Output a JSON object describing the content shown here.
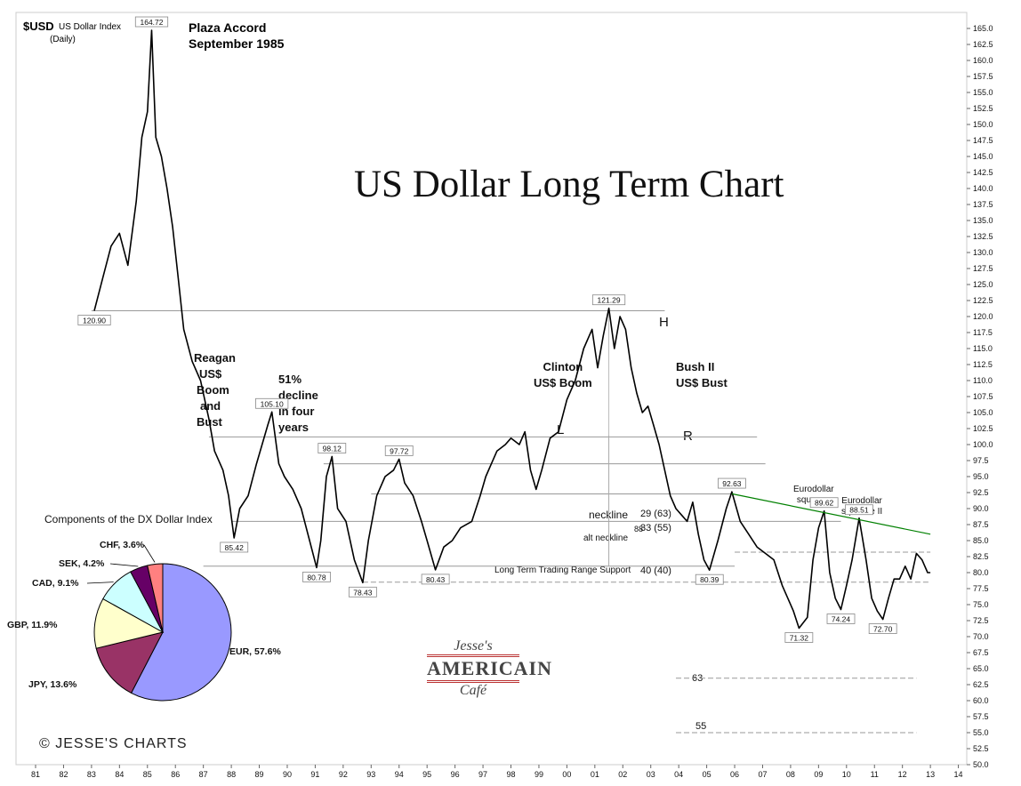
{
  "header": {
    "symbol": "$USD",
    "name": "US Dollar Index",
    "period": "(Daily)"
  },
  "title": "US Dollar Long Term Chart",
  "credit": "© JESSE'S CHARTS",
  "logo": {
    "line1": "Jesse's",
    "line2": "AMERICAIN",
    "line3": "Café"
  },
  "annotations": {
    "plaza": [
      "Plaza Accord",
      "September 1985"
    ],
    "reagan": [
      "Reagan",
      "US$",
      "Boom",
      "and",
      "Bust"
    ],
    "decline": [
      "51%",
      "decline",
      "in four",
      "years"
    ],
    "clinton": [
      "Clinton",
      "US$ Boom"
    ],
    "bush": [
      "Bush II",
      "US$ Bust"
    ],
    "hs_left": "L",
    "hs_head": "H",
    "hs_right": "R",
    "eurodollar1": [
      "Eurodollar",
      "squeeze"
    ],
    "eurodollar2": [
      "Eurodollar",
      "squeeze II"
    ],
    "neckline": "neckline",
    "alt_neckline": "alt neckline",
    "support": "Long Term Trading Range Support",
    "measure_88": "88",
    "measure_29": "29  (63)",
    "measure_33": "33  (55)",
    "measure_40": "40  (40)",
    "target_63": "63",
    "target_55": "55"
  },
  "chart_data": [
    {
      "type": "line",
      "title": "US Dollar Long Term Chart",
      "x_axis": {
        "ticks": [
          "81",
          "82",
          "83",
          "84",
          "85",
          "86",
          "87",
          "88",
          "89",
          "90",
          "91",
          "92",
          "93",
          "94",
          "95",
          "96",
          "97",
          "98",
          "99",
          "00",
          "01",
          "02",
          "03",
          "04",
          "05",
          "06",
          "07",
          "08",
          "09",
          "10",
          "11",
          "12",
          "13",
          "14"
        ]
      },
      "y_axis": {
        "side": "right",
        "ylim": [
          50,
          167.5
        ],
        "ticks": [
          "50.0",
          "52.5",
          "55.0",
          "57.5",
          "60.0",
          "62.5",
          "65.0",
          "67.5",
          "70.0",
          "72.5",
          "75.0",
          "77.5",
          "80.0",
          "82.5",
          "85.0",
          "87.5",
          "90.0",
          "92.5",
          "95.0",
          "97.5",
          "100.0",
          "102.5",
          "105.0",
          "107.5",
          "110.0",
          "112.5",
          "115.0",
          "117.5",
          "120.0",
          "122.5",
          "125.0",
          "127.5",
          "130.0",
          "132.5",
          "135.0",
          "137.5",
          "140.0",
          "142.5",
          "145.0",
          "147.5",
          "150.0",
          "152.5",
          "155.0",
          "157.5",
          "160.0",
          "162.5",
          "165.0"
        ]
      },
      "series": [
        {
          "color": "#000000",
          "points": [
            [
              1983.1,
              120.9
            ],
            [
              1983.4,
              126
            ],
            [
              1983.7,
              131
            ],
            [
              1984.0,
              133
            ],
            [
              1984.3,
              128
            ],
            [
              1984.6,
              138
            ],
            [
              1984.8,
              148
            ],
            [
              1985.0,
              152
            ],
            [
              1985.15,
              164.72
            ],
            [
              1985.3,
              148
            ],
            [
              1985.5,
              145
            ],
            [
              1985.7,
              140
            ],
            [
              1985.9,
              134
            ],
            [
              1986.1,
              126
            ],
            [
              1986.3,
              118
            ],
            [
              1986.6,
              113
            ],
            [
              1986.9,
              110
            ],
            [
              1987.2,
              104
            ],
            [
              1987.4,
              99
            ],
            [
              1987.7,
              96
            ],
            [
              1987.9,
              92
            ],
            [
              1988.1,
              85.42
            ],
            [
              1988.3,
              90
            ],
            [
              1988.6,
              92
            ],
            [
              1988.9,
              97
            ],
            [
              1989.1,
              100
            ],
            [
              1989.3,
              103
            ],
            [
              1989.45,
              105.1
            ],
            [
              1989.7,
              97
            ],
            [
              1989.9,
              95
            ],
            [
              1990.2,
              93
            ],
            [
              1990.5,
              90
            ],
            [
              1990.8,
              85
            ],
            [
              1991.05,
              80.78
            ],
            [
              1991.2,
              85
            ],
            [
              1991.4,
              95
            ],
            [
              1991.6,
              98.12
            ],
            [
              1991.8,
              90
            ],
            [
              1992.1,
              88
            ],
            [
              1992.4,
              82
            ],
            [
              1992.7,
              78.43
            ],
            [
              1992.9,
              85
            ],
            [
              1993.2,
              92
            ],
            [
              1993.5,
              95
            ],
            [
              1993.8,
              96
            ],
            [
              1994.0,
              97.72
            ],
            [
              1994.2,
              94
            ],
            [
              1994.5,
              92
            ],
            [
              1994.8,
              88
            ],
            [
              1995.0,
              85
            ],
            [
              1995.3,
              80.43
            ],
            [
              1995.6,
              84
            ],
            [
              1995.9,
              85
            ],
            [
              1996.2,
              87
            ],
            [
              1996.6,
              88
            ],
            [
              1996.9,
              92
            ],
            [
              1997.1,
              95
            ],
            [
              1997.3,
              97
            ],
            [
              1997.5,
              99
            ],
            [
              1997.8,
              100
            ],
            [
              1998.0,
              101
            ],
            [
              1998.3,
              100
            ],
            [
              1998.5,
              102
            ],
            [
              1998.7,
              96
            ],
            [
              1998.9,
              93
            ],
            [
              1999.1,
              96
            ],
            [
              1999.4,
              101
            ],
            [
              1999.7,
              102
            ],
            [
              2000.0,
              107
            ],
            [
              2000.3,
              110
            ],
            [
              2000.6,
              115
            ],
            [
              2000.9,
              118
            ],
            [
              2001.1,
              112
            ],
            [
              2001.3,
              117
            ],
            [
              2001.5,
              121.29
            ],
            [
              2001.7,
              115
            ],
            [
              2001.9,
              120
            ],
            [
              2002.1,
              118
            ],
            [
              2002.3,
              112
            ],
            [
              2002.5,
              108
            ],
            [
              2002.7,
              105
            ],
            [
              2002.9,
              106
            ],
            [
              2003.1,
              103
            ],
            [
              2003.3,
              100
            ],
            [
              2003.5,
              96
            ],
            [
              2003.7,
              92
            ],
            [
              2003.9,
              90
            ],
            [
              2004.1,
              89
            ],
            [
              2004.3,
              88
            ],
            [
              2004.5,
              91
            ],
            [
              2004.7,
              86
            ],
            [
              2004.9,
              82
            ],
            [
              2005.1,
              80.39
            ],
            [
              2005.4,
              85
            ],
            [
              2005.7,
              90
            ],
            [
              2005.9,
              92.63
            ],
            [
              2006.2,
              88
            ],
            [
              2006.5,
              86
            ],
            [
              2006.8,
              84
            ],
            [
              2007.1,
              83
            ],
            [
              2007.4,
              82
            ],
            [
              2007.7,
              78
            ],
            [
              2007.9,
              76
            ],
            [
              2008.1,
              74
            ],
            [
              2008.3,
              71.32
            ],
            [
              2008.6,
              73
            ],
            [
              2008.8,
              82
            ],
            [
              2009.0,
              87
            ],
            [
              2009.2,
              89.62
            ],
            [
              2009.4,
              80
            ],
            [
              2009.6,
              76
            ],
            [
              2009.8,
              74.24
            ],
            [
              2010.0,
              78
            ],
            [
              2010.2,
              82
            ],
            [
              2010.45,
              88.51
            ],
            [
              2010.7,
              82
            ],
            [
              2010.9,
              76
            ],
            [
              2011.1,
              74
            ],
            [
              2011.3,
              72.7
            ],
            [
              2011.5,
              76
            ],
            [
              2011.7,
              79
            ],
            [
              2011.9,
              79
            ],
            [
              2012.1,
              81
            ],
            [
              2012.3,
              79
            ],
            [
              2012.5,
              83
            ],
            [
              2012.7,
              82
            ],
            [
              2012.9,
              80
            ],
            [
              2013.0,
              80
            ]
          ]
        },
        {
          "color": "#008000",
          "points": [
            [
              2005.9,
              92.3
            ],
            [
              2013.0,
              86.0
            ]
          ]
        }
      ],
      "data_labels": [
        {
          "x": 1983.1,
          "y": 120.9,
          "text": "120.90",
          "pos": "below"
        },
        {
          "x": 1985.15,
          "y": 164.72,
          "text": "164.72",
          "pos": "above"
        },
        {
          "x": 1988.1,
          "y": 85.42,
          "text": "85.42",
          "pos": "below"
        },
        {
          "x": 1989.45,
          "y": 105.1,
          "text": "105.10",
          "pos": "above"
        },
        {
          "x": 1991.05,
          "y": 80.78,
          "text": "80.78",
          "pos": "below"
        },
        {
          "x": 1991.6,
          "y": 98.12,
          "text": "98.12",
          "pos": "above"
        },
        {
          "x": 1992.7,
          "y": 78.43,
          "text": "78.43",
          "pos": "below"
        },
        {
          "x": 1994.0,
          "y": 97.72,
          "text": "97.72",
          "pos": "above"
        },
        {
          "x": 1995.3,
          "y": 80.43,
          "text": "80.43",
          "pos": "below"
        },
        {
          "x": 2001.5,
          "y": 121.29,
          "text": "121.29",
          "pos": "above"
        },
        {
          "x": 2005.1,
          "y": 80.39,
          "text": "80.39",
          "pos": "below"
        },
        {
          "x": 2005.9,
          "y": 92.63,
          "text": "92.63",
          "pos": "above"
        },
        {
          "x": 2008.3,
          "y": 71.32,
          "text": "71.32",
          "pos": "below"
        },
        {
          "x": 2009.2,
          "y": 89.62,
          "text": "89.62",
          "pos": "above"
        },
        {
          "x": 2009.8,
          "y": 74.24,
          "text": "74.24",
          "pos": "below"
        },
        {
          "x": 2010.45,
          "y": 88.51,
          "text": "88.51",
          "pos": "above"
        },
        {
          "x": 2011.3,
          "y": 72.7,
          "text": "72.70",
          "pos": "below"
        }
      ],
      "reference_lines": [
        {
          "y": 120.9,
          "x1": 1983.0,
          "x2": 2003.5,
          "style": "solid",
          "color": "#999999"
        },
        {
          "y": 101.2,
          "x1": 1987.2,
          "x2": 2006.8,
          "style": "solid",
          "color": "#999999"
        },
        {
          "y": 97.0,
          "x1": 1991.3,
          "x2": 2007.1,
          "style": "solid",
          "color": "#999999"
        },
        {
          "y": 92.3,
          "x1": 1993.0,
          "x2": 2005.9,
          "style": "solid",
          "color": "#999999"
        },
        {
          "y": 88.0,
          "x1": 1988.0,
          "x2": 2009.8,
          "style": "solid",
          "color": "#999999"
        },
        {
          "y": 81.0,
          "x1": 1987.0,
          "x2": 2006.0,
          "style": "solid",
          "color": "#999999"
        },
        {
          "y": 78.5,
          "x1": 1992.7,
          "x2": 2013.0,
          "style": "dashed",
          "color": "#999999"
        },
        {
          "y": 83.2,
          "x1": 2006.0,
          "x2": 2013.0,
          "style": "dashed",
          "color": "#999999"
        },
        {
          "y": 63.5,
          "x1": 2003.9,
          "x2": 2012.5,
          "style": "dashed",
          "color": "#999999"
        },
        {
          "y": 55.0,
          "x1": 2003.9,
          "x2": 2012.5,
          "style": "dashed",
          "color": "#999999"
        }
      ]
    },
    {
      "type": "pie",
      "title": "Components of the DX Dollar Index",
      "slices": [
        {
          "label": "EUR, 57.6%",
          "value": 57.6,
          "color": "#9999ff"
        },
        {
          "label": "JPY, 13.6%",
          "value": 13.6,
          "color": "#993366"
        },
        {
          "label": "GBP, 11.9%",
          "value": 11.9,
          "color": "#ffffcc"
        },
        {
          "label": "CAD, 9.1%",
          "value": 9.1,
          "color": "#ccffff"
        },
        {
          "label": "SEK, 4.2%",
          "value": 4.2,
          "color": "#660066"
        },
        {
          "label": "CHF, 3.6%",
          "value": 3.6,
          "color": "#ff8080"
        }
      ]
    }
  ]
}
